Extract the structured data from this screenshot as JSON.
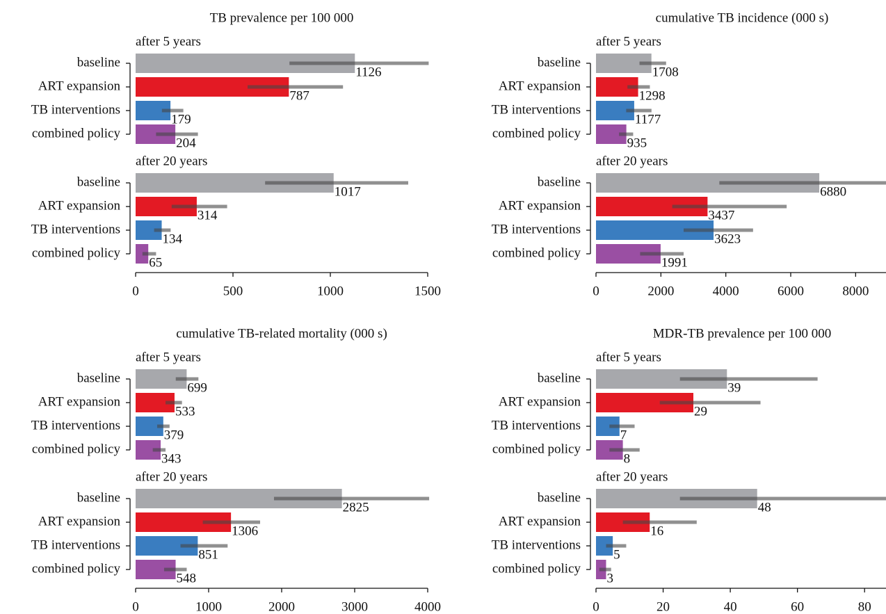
{
  "chart_data": [
    {
      "type": "bar",
      "orientation": "horizontal",
      "title": "TB prevalence per 100 000",
      "categories": [
        "baseline",
        "ART expansion",
        "TB interventions",
        "combined policy"
      ],
      "colors": [
        "#a7a8ac",
        "#e31a24",
        "#3a7dc0",
        "#9a4fa3"
      ],
      "groups": [
        {
          "label": "after 5 years",
          "values": [
            1126,
            787,
            179,
            204
          ],
          "errors": [
            [
              790,
              1505
            ],
            [
              575,
              1065
            ],
            [
              135,
              245
            ],
            [
              105,
              320
            ]
          ]
        },
        {
          "label": "after 20 years",
          "values": [
            1017,
            314,
            134,
            65
          ],
          "errors": [
            [
              665,
              1400
            ],
            [
              185,
              470
            ],
            [
              95,
              180
            ],
            [
              35,
              105
            ]
          ]
        }
      ],
      "xlim": [
        0,
        1500
      ],
      "xticks": [
        0,
        500,
        1000,
        1500
      ]
    },
    {
      "type": "bar",
      "orientation": "horizontal",
      "title": "cumulative TB incidence (000 s)",
      "categories": [
        "baseline",
        "ART expansion",
        "TB interventions",
        "combined policy"
      ],
      "colors": [
        "#a7a8ac",
        "#e31a24",
        "#3a7dc0",
        "#9a4fa3"
      ],
      "groups": [
        {
          "label": "after 5 years",
          "values": [
            1708,
            1298,
            1177,
            935
          ],
          "errors": [
            [
              1340,
              2160
            ],
            [
              970,
              1660
            ],
            [
              930,
              1710
            ],
            [
              710,
              1145
            ]
          ]
        },
        {
          "label": "after 20 years",
          "values": [
            6880,
            3437,
            3623,
            1991
          ],
          "errors": [
            [
              3800,
              9000
            ],
            [
              2350,
              5875
            ],
            [
              2700,
              4840
            ],
            [
              1360,
              2700
            ]
          ]
        }
      ],
      "xlim": [
        0,
        9000
      ],
      "xticks": [
        0,
        2000,
        4000,
        6000,
        8000
      ]
    },
    {
      "type": "bar",
      "orientation": "horizontal",
      "title": "cumulative TB-related mortality (000 s)",
      "categories": [
        "baseline",
        "ART expansion",
        "TB interventions",
        "combined policy"
      ],
      "colors": [
        "#a7a8ac",
        "#e31a24",
        "#3a7dc0",
        "#9a4fa3"
      ],
      "groups": [
        {
          "label": "after 5 years",
          "values": [
            699,
            533,
            379,
            343
          ],
          "errors": [
            [
              550,
              860
            ],
            [
              410,
              635
            ],
            [
              295,
              465
            ],
            [
              235,
              410
            ]
          ]
        },
        {
          "label": "after 20 years",
          "values": [
            2825,
            1306,
            851,
            548
          ],
          "errors": [
            [
              1895,
              4020
            ],
            [
              920,
              1705
            ],
            [
              615,
              1260
            ],
            [
              390,
              700
            ]
          ]
        }
      ],
      "xlim": [
        0,
        4000
      ],
      "xticks": [
        0,
        1000,
        2000,
        3000,
        4000
      ]
    },
    {
      "type": "bar",
      "orientation": "horizontal",
      "title": "MDR-TB prevalence per 100 000",
      "categories": [
        "baseline",
        "ART expansion",
        "TB interventions",
        "combined policy"
      ],
      "colors": [
        "#a7a8ac",
        "#e31a24",
        "#3a7dc0",
        "#9a4fa3"
      ],
      "groups": [
        {
          "label": "after 5 years",
          "values": [
            39,
            29,
            7,
            8
          ],
          "errors": [
            [
              25,
              66
            ],
            [
              19,
              49
            ],
            [
              4,
              11.5
            ],
            [
              4,
              13
            ]
          ]
        },
        {
          "label": "after 20 years",
          "values": [
            48,
            16,
            5,
            3
          ],
          "errors": [
            [
              25,
              87
            ],
            [
              8,
              30
            ],
            [
              3,
              9
            ],
            [
              1,
              4.5
            ]
          ]
        }
      ],
      "xlim": [
        0,
        87
      ],
      "xticks": [
        0,
        20,
        40,
        60,
        80
      ]
    }
  ]
}
